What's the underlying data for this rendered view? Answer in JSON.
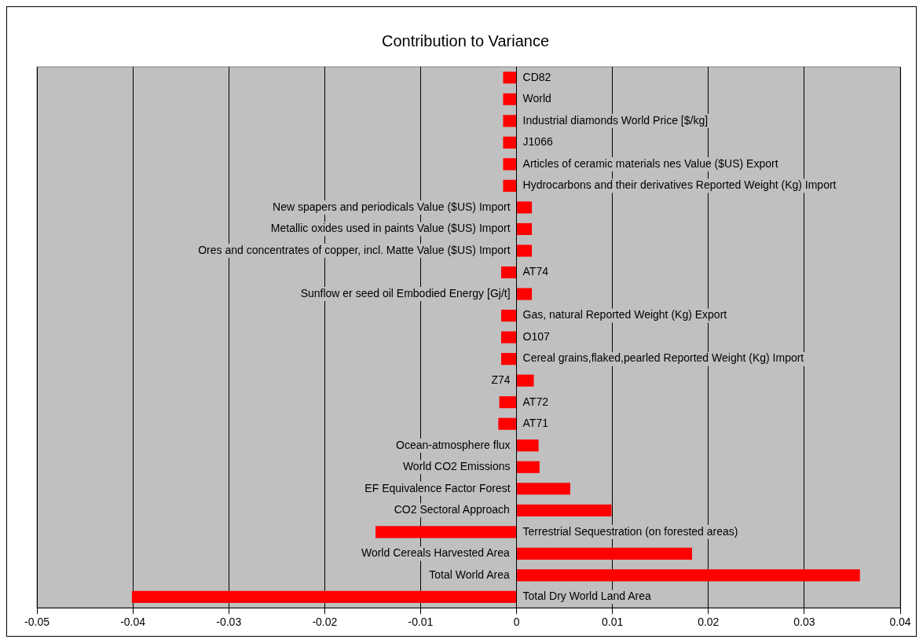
{
  "chart_data": {
    "type": "bar",
    "orientation": "horizontal",
    "title": "Contribution to Variance",
    "categories": [
      "CD82",
      "World",
      "Industrial diamonds World Price [$/kg]",
      "J1066",
      "Articles of ceramic materials nes Value ($US) Export",
      "Hydrocarbons and their derivatives Reported Weight (Kg) Import",
      "New spapers and periodicals Value ($US) Import",
      "Metallic oxides used in paints Value ($US) Import",
      "Ores and concentrates of copper, incl. Matte Value ($US) Import",
      "AT74",
      "Sunflow er seed oil Embodied Energy [Gj/t]",
      "Gas, natural Reported Weight (Kg) Export",
      "O107",
      "Cereal grains,flaked,pearled Reported Weight (Kg) Import",
      "Z74",
      "AT72",
      "AT71",
      "Ocean-atmosphere flux",
      "World CO2 Emissions",
      "EF Equivalence Factor Forest",
      "CO2 Sectoral Approach",
      "Terrestrial Sequestration (on forested areas)",
      "World Cereals Harvested Area",
      "Total World Area",
      "Total Dry World Land Area"
    ],
    "values": [
      -0.0014,
      -0.0014,
      -0.0014,
      -0.0014,
      -0.0014,
      -0.0014,
      0.0016,
      0.0016,
      0.0016,
      -0.0016,
      0.0016,
      -0.0016,
      -0.0016,
      -0.0016,
      0.0018,
      -0.0018,
      -0.0019,
      0.0023,
      0.0024,
      0.0056,
      0.0099,
      -0.0147,
      0.0183,
      0.0358,
      -0.0401
    ],
    "color": "#ff0000",
    "xlim": [
      -0.05,
      0.04
    ],
    "xticks": [
      -0.05,
      -0.04,
      -0.03,
      -0.02,
      -0.01,
      0,
      0.01,
      0.02,
      0.03,
      0.04
    ],
    "grid": "x",
    "legend": false
  }
}
